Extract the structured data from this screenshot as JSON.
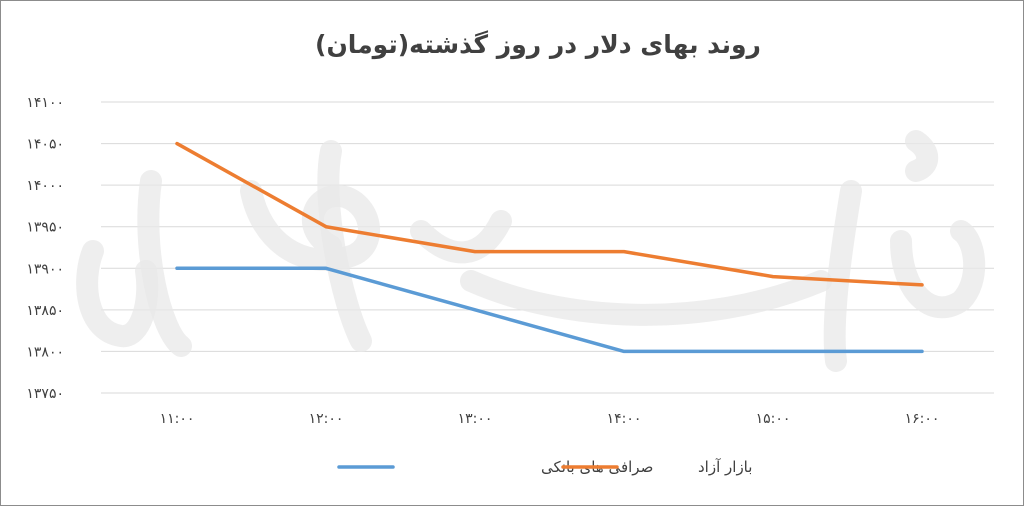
{
  "chart_data": {
    "type": "line",
    "title": "روند بهای دلار در روز گذشته(تومان)",
    "categories": [
      "11:00",
      "12:00",
      "13:00",
      "14:00",
      "15:00",
      "16:00"
    ],
    "category_labels": [
      "۱۱:۰۰",
      "۱۲:۰۰",
      "۱۳:۰۰",
      "۱۴:۰۰",
      "۱۵:۰۰",
      "۱۶:۰۰"
    ],
    "ylim": [
      13750,
      14100
    ],
    "yticks": [
      13750,
      13800,
      13850,
      13900,
      13950,
      14000,
      14050,
      14100
    ],
    "ytick_labels": [
      "۱۳۷۵۰",
      "۱۳۸۰۰",
      "۱۳۸۵۰",
      "۱۳۹۰۰",
      "۱۳۹۵۰",
      "۱۴۰۰۰",
      "۱۴۰۵۰",
      "۱۴۱۰۰"
    ],
    "grid": true,
    "legend_position": "bottom",
    "series": [
      {
        "name": "صرافی های بانکی",
        "color": "#5b9bd5",
        "values": [
          13900,
          13900,
          13850,
          13800,
          13800,
          13800
        ]
      },
      {
        "name": "بازار آزاد",
        "color": "#ed7d31",
        "values": [
          14050,
          13950,
          13920,
          13920,
          13890,
          13880
        ]
      }
    ]
  }
}
